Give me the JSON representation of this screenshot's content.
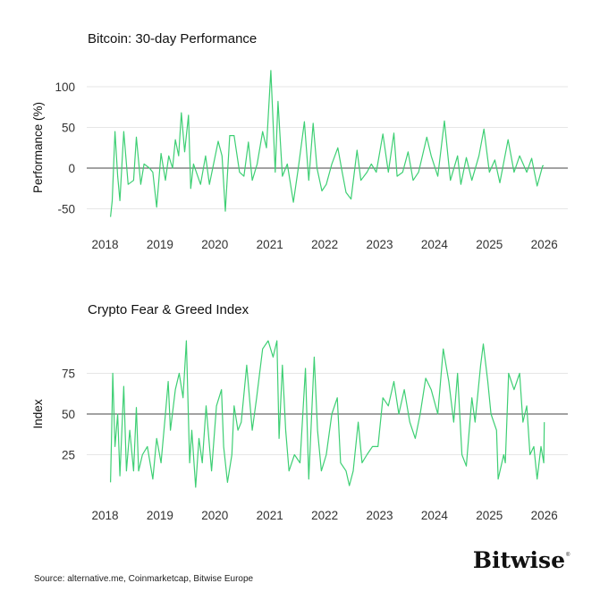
{
  "colors": {
    "series": "#3ecf74",
    "grid": "#e6e6e6",
    "reference_line": "#444444"
  },
  "chart_data": [
    {
      "type": "line",
      "title": "Bitcoin: 30-day Performance",
      "xlabel": "",
      "ylabel": "Performance (%)",
      "xlim": [
        2018,
        2026
      ],
      "ylim": [
        -65,
        125
      ],
      "x_ticks": [
        "2018",
        "2019",
        "2020",
        "2021",
        "2022",
        "2023",
        "2024",
        "2025",
        "2026"
      ],
      "y_ticks": [
        100,
        50,
        0,
        -50
      ],
      "y_tick_labels": [
        "100",
        "50",
        "0",
        "-50"
      ],
      "reference_line": 0,
      "grid": true,
      "x": [
        2018.1,
        2018.13,
        2018.18,
        2018.23,
        2018.27,
        2018.34,
        2018.42,
        2018.52,
        2018.57,
        2018.65,
        2018.71,
        2018.81,
        2018.87,
        2018.94,
        2019.02,
        2019.1,
        2019.16,
        2019.23,
        2019.28,
        2019.34,
        2019.39,
        2019.45,
        2019.52,
        2019.56,
        2019.61,
        2019.74,
        2019.83,
        2019.9,
        2020.06,
        2020.13,
        2020.19,
        2020.27,
        2020.35,
        2020.45,
        2020.53,
        2020.61,
        2020.68,
        2020.77,
        2020.87,
        2020.94,
        2021.02,
        2021.1,
        2021.15,
        2021.23,
        2021.32,
        2021.43,
        2021.52,
        2021.63,
        2021.71,
        2021.79,
        2021.86,
        2021.95,
        2022.03,
        2022.13,
        2022.24,
        2022.32,
        2022.39,
        2022.48,
        2022.59,
        2022.66,
        2022.77,
        2022.85,
        2022.94,
        2023.06,
        2023.16,
        2023.26,
        2023.32,
        2023.42,
        2023.52,
        2023.61,
        2023.71,
        2023.86,
        2023.94,
        2024.06,
        2024.18,
        2024.29,
        2024.42,
        2024.48,
        2024.58,
        2024.68,
        2024.81,
        2024.9,
        2025.0,
        2025.1,
        2025.19,
        2025.34,
        2025.45,
        2025.55,
        2025.68,
        2025.77,
        2025.87,
        2025.97,
        2025.99
      ],
      "y": [
        -60,
        -40,
        45,
        -10,
        -40,
        45,
        -20,
        -15,
        38,
        -20,
        5,
        0,
        -5,
        -48,
        18,
        -15,
        15,
        0,
        35,
        15,
        68,
        20,
        65,
        -25,
        5,
        -20,
        15,
        -20,
        33,
        15,
        -53,
        40,
        40,
        -5,
        -10,
        32,
        -15,
        5,
        45,
        25,
        120,
        -5,
        82,
        -10,
        5,
        -42,
        0,
        57,
        -15,
        55,
        0,
        -28,
        -20,
        5,
        25,
        -5,
        -30,
        -38,
        22,
        -15,
        -5,
        5,
        -5,
        42,
        -5,
        43,
        -10,
        -5,
        20,
        -15,
        -5,
        38,
        15,
        -10,
        58,
        -15,
        15,
        -20,
        13,
        -15,
        15,
        48,
        -5,
        10,
        -18,
        35,
        -5,
        15,
        -5,
        12,
        -22,
        3,
        3
      ]
    },
    {
      "type": "line",
      "title": "Crypto Fear & Greed Index",
      "xlabel": "",
      "ylabel": "Index",
      "xlim": [
        2018,
        2026
      ],
      "ylim": [
        0,
        100
      ],
      "x_ticks": [
        "2018",
        "2019",
        "2020",
        "2021",
        "2022",
        "2023",
        "2024",
        "2025",
        "2026"
      ],
      "y_ticks": [
        75,
        50,
        25
      ],
      "y_tick_labels": [
        "75",
        "50",
        "25"
      ],
      "reference_line": 50,
      "grid": true,
      "x": [
        2018.1,
        2018.12,
        2018.14,
        2018.18,
        2018.23,
        2018.27,
        2018.34,
        2018.39,
        2018.45,
        2018.52,
        2018.57,
        2018.61,
        2018.68,
        2018.77,
        2018.87,
        2018.94,
        2019.02,
        2019.1,
        2019.15,
        2019.19,
        2019.28,
        2019.35,
        2019.42,
        2019.48,
        2019.54,
        2019.58,
        2019.65,
        2019.71,
        2019.77,
        2019.84,
        2019.94,
        2020.03,
        2020.12,
        2020.16,
        2020.23,
        2020.31,
        2020.35,
        2020.42,
        2020.48,
        2020.58,
        2020.68,
        2020.76,
        2020.87,
        2020.97,
        2021.06,
        2021.13,
        2021.17,
        2021.23,
        2021.29,
        2021.35,
        2021.45,
        2021.55,
        2021.65,
        2021.71,
        2021.81,
        2021.87,
        2021.94,
        2022.03,
        2022.13,
        2022.23,
        2022.29,
        2022.39,
        2022.45,
        2022.52,
        2022.61,
        2022.68,
        2022.77,
        2022.87,
        2022.97,
        2023.06,
        2023.16,
        2023.26,
        2023.35,
        2023.45,
        2023.55,
        2023.65,
        2023.74,
        2023.84,
        2023.94,
        2024.06,
        2024.16,
        2024.26,
        2024.35,
        2024.42,
        2024.5,
        2024.58,
        2024.68,
        2024.74,
        2024.84,
        2024.89,
        2024.97,
        2025.03,
        2025.13,
        2025.16,
        2025.26,
        2025.29,
        2025.35,
        2025.45,
        2025.55,
        2025.61,
        2025.68,
        2025.74,
        2025.81,
        2025.87,
        2025.94,
        2025.99,
        2026.0
      ],
      "y": [
        8,
        40,
        75,
        30,
        50,
        12,
        67,
        15,
        40,
        15,
        54,
        15,
        25,
        30,
        10,
        35,
        20,
        50,
        70,
        40,
        65,
        75,
        60,
        95,
        20,
        40,
        5,
        35,
        20,
        55,
        15,
        55,
        65,
        30,
        8,
        25,
        55,
        40,
        45,
        80,
        40,
        60,
        90,
        95,
        85,
        95,
        35,
        80,
        40,
        15,
        25,
        20,
        78,
        10,
        85,
        40,
        15,
        25,
        50,
        60,
        20,
        15,
        6,
        15,
        45,
        20,
        25,
        30,
        30,
        60,
        55,
        70,
        50,
        65,
        45,
        35,
        50,
        72,
        65,
        50,
        90,
        70,
        45,
        75,
        25,
        18,
        60,
        45,
        80,
        93,
        70,
        50,
        40,
        10,
        25,
        20,
        75,
        65,
        75,
        45,
        55,
        25,
        30,
        10,
        30,
        20,
        45
      ]
    }
  ],
  "footer": {
    "source": "Source: alternative.me, Coinmarketcap, Bitwise Europe",
    "logo": "Bitwise"
  }
}
